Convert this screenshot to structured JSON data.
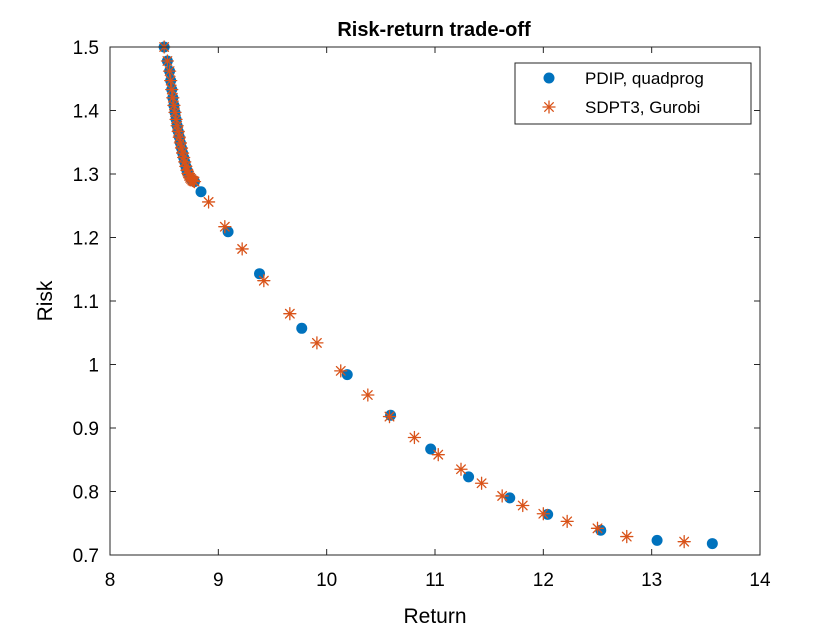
{
  "chart_data": {
    "type": "scatter",
    "title": "Risk-return trade-off",
    "xlabel": "Return",
    "ylabel": "Risk",
    "xlim": [
      8,
      14
    ],
    "ylim": [
      0.7,
      1.5
    ],
    "xticks": [
      8,
      9,
      10,
      11,
      12,
      13,
      14
    ],
    "xtick_labels": [
      "8",
      "9",
      "10",
      "11",
      "12",
      "13",
      "14"
    ],
    "yticks": [
      0.7,
      0.8,
      0.9,
      1.0,
      1.1,
      1.2,
      1.3,
      1.4,
      1.5
    ],
    "ytick_labels": [
      "0.7",
      "0.8",
      "0.9",
      "1",
      "1.1",
      "1.2",
      "1.3",
      "1.4",
      "1.5"
    ],
    "grid": false,
    "legend_position": "top-right",
    "series": [
      {
        "name": "PDIP, quadprog",
        "marker": "filled-circle",
        "color": "#0072BD",
        "x": [
          8.5,
          8.53,
          8.55,
          8.56,
          8.57,
          8.58,
          8.59,
          8.6,
          8.61,
          8.62,
          8.63,
          8.64,
          8.65,
          8.66,
          8.67,
          8.68,
          8.69,
          8.7,
          8.71,
          8.72,
          8.73,
          8.74,
          8.75,
          8.76,
          8.77,
          8.78,
          8.84,
          9.09,
          9.38,
          9.77,
          10.19,
          10.59,
          10.96,
          11.31,
          11.69,
          12.04,
          12.53,
          13.05,
          13.56
        ],
        "y": [
          1.5,
          1.478,
          1.462,
          1.447,
          1.433,
          1.42,
          1.408,
          1.397,
          1.386,
          1.376,
          1.367,
          1.358,
          1.349,
          1.341,
          1.333,
          1.326,
          1.319,
          1.312,
          1.306,
          1.301,
          1.297,
          1.294,
          1.292,
          1.29,
          1.289,
          1.288,
          1.272,
          1.209,
          1.143,
          1.057,
          0.984,
          0.92,
          0.867,
          0.823,
          0.79,
          0.764,
          0.739,
          0.723,
          0.718
        ]
      },
      {
        "name": "SDPT3, Gurobi",
        "marker": "asterisk",
        "color": "#D95319",
        "x": [
          8.5,
          8.53,
          8.55,
          8.56,
          8.57,
          8.58,
          8.59,
          8.6,
          8.61,
          8.62,
          8.63,
          8.64,
          8.65,
          8.66,
          8.67,
          8.68,
          8.69,
          8.7,
          8.71,
          8.72,
          8.73,
          8.74,
          8.75,
          8.76,
          8.77,
          8.78,
          8.91,
          9.06,
          9.22,
          9.42,
          9.66,
          9.91,
          10.13,
          10.38,
          10.58,
          10.81,
          11.03,
          11.24,
          11.43,
          11.62,
          11.81,
          12.0,
          12.22,
          12.5,
          12.77,
          13.3
        ],
        "y": [
          1.5,
          1.478,
          1.462,
          1.447,
          1.433,
          1.42,
          1.408,
          1.397,
          1.386,
          1.376,
          1.367,
          1.358,
          1.349,
          1.341,
          1.333,
          1.326,
          1.319,
          1.312,
          1.306,
          1.301,
          1.297,
          1.294,
          1.292,
          1.29,
          1.289,
          1.288,
          1.256,
          1.217,
          1.182,
          1.132,
          1.08,
          1.034,
          0.99,
          0.952,
          0.918,
          0.885,
          0.858,
          0.835,
          0.813,
          0.793,
          0.778,
          0.765,
          0.753,
          0.742,
          0.729,
          0.721
        ]
      }
    ]
  }
}
